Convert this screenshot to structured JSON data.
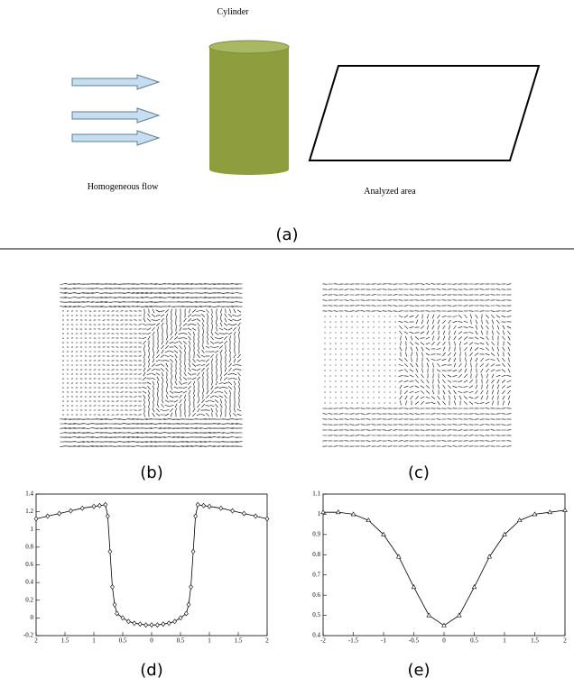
{
  "figure": {
    "panel_a": {
      "cylinder_label": "Cylinder",
      "flow_label": "Homogeneous flow",
      "area_label": "Analyzed area",
      "caption": "(a)"
    },
    "panel_b": {
      "caption": "(b)"
    },
    "panel_c": {
      "caption": "(c)"
    }
  },
  "chart_data": [
    {
      "type": "line",
      "caption": "(d)",
      "color": "#000000",
      "marker": "diamond",
      "x": [
        -2,
        -1.8,
        -1.6,
        -1.4,
        -1.2,
        -1,
        -0.9,
        -0.8,
        -0.76,
        -0.72,
        -0.68,
        -0.64,
        -0.6,
        -0.5,
        -0.4,
        -0.3,
        -0.2,
        -0.1,
        0,
        0.1,
        0.2,
        0.3,
        0.4,
        0.5,
        0.6,
        0.64,
        0.68,
        0.72,
        0.76,
        0.8,
        0.9,
        1,
        1.2,
        1.4,
        1.6,
        1.8,
        2
      ],
      "values": [
        1.12,
        1.15,
        1.18,
        1.21,
        1.24,
        1.26,
        1.27,
        1.28,
        1.15,
        0.75,
        0.35,
        0.15,
        0.05,
        0.0,
        -0.04,
        -0.06,
        -0.07,
        -0.08,
        -0.08,
        -0.08,
        -0.07,
        -0.06,
        -0.04,
        0.0,
        0.05,
        0.15,
        0.35,
        0.75,
        1.15,
        1.28,
        1.27,
        1.26,
        1.24,
        1.21,
        1.18,
        1.15,
        1.12
      ],
      "xlim": [
        -2,
        2
      ],
      "ylim": [
        -0.2,
        1.4
      ],
      "xticks": [
        {
          "value": -2,
          "label": "2"
        },
        {
          "value": -1.5,
          "label": "1.5"
        },
        {
          "value": -1,
          "label": "1"
        },
        {
          "value": -0.5,
          "label": "0.5"
        },
        0,
        0.5,
        1,
        1.5,
        2
      ],
      "yticks": [
        -0.2,
        0,
        0.2,
        0.4,
        0.6,
        0.8,
        1,
        1.2,
        1.4
      ]
    },
    {
      "type": "line",
      "caption": "(e)",
      "color": "#000000",
      "marker": "triangle",
      "x": [
        -2,
        -1.75,
        -1.5,
        -1.25,
        -1,
        -0.75,
        -0.5,
        -0.25,
        0,
        0.25,
        0.5,
        0.75,
        1,
        1.25,
        1.5,
        1.75,
        2
      ],
      "values": [
        1.01,
        1.01,
        1.0,
        0.97,
        0.9,
        0.79,
        0.64,
        0.5,
        0.45,
        0.5,
        0.64,
        0.79,
        0.9,
        0.97,
        1.0,
        1.01,
        1.02
      ],
      "xlim": [
        -2,
        2
      ],
      "ylim": [
        0.4,
        1.1
      ],
      "xticks": [
        -2,
        -1.5,
        -1,
        -0.5,
        0,
        0.5,
        1,
        1.5,
        2
      ],
      "yticks": [
        0.4,
        0.5,
        0.6,
        0.7,
        0.8,
        0.9,
        1,
        1.1
      ]
    }
  ]
}
